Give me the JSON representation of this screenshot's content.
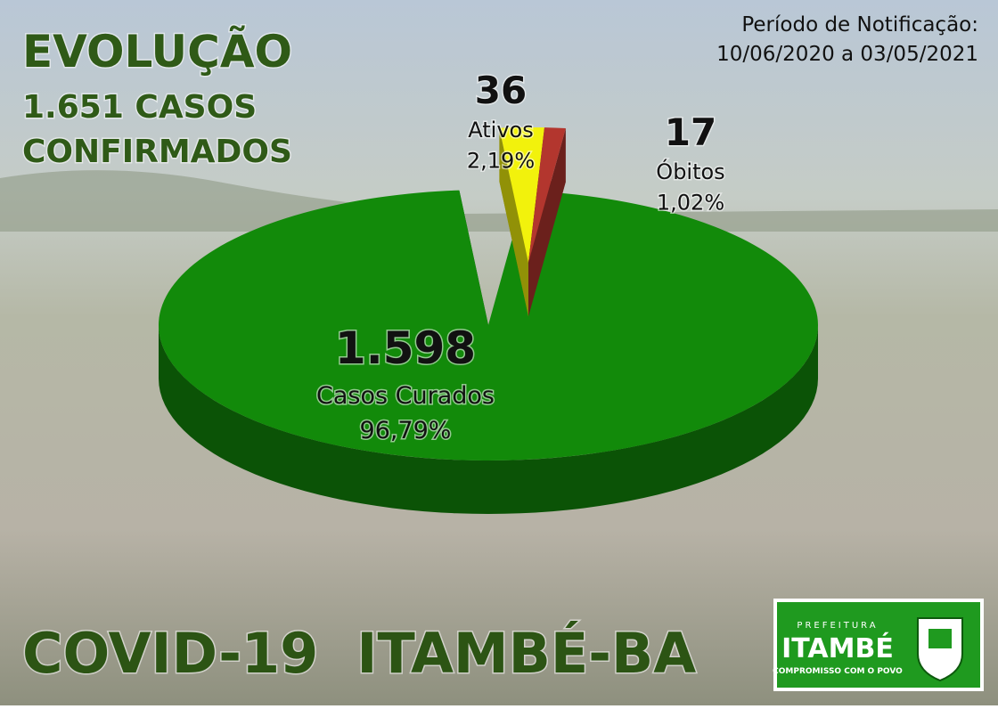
{
  "chart_data": {
    "type": "pie",
    "title": "EVOLUÇÃO",
    "subtitle": [
      "1.651 CASOS",
      "CONFIRMADOS"
    ],
    "period_label": "Período de Notificação:",
    "period": "10/06/2020 a 03/05/2021",
    "footer": "COVID-19  ITAMBÉ-BA",
    "categories": [
      "Casos Curados",
      "Ativos",
      "Óbitos"
    ],
    "values": [
      1598,
      36,
      17
    ],
    "value_labels": [
      "1.598",
      "36",
      "17"
    ],
    "percent_labels": [
      "96,79%",
      "2,19%",
      "1,02%"
    ],
    "colors": [
      "#128a0a",
      "#f2f20c",
      "#b3362e"
    ],
    "exploded": [
      false,
      true,
      true
    ]
  },
  "logo": {
    "top": "PREFEITURA",
    "name": "ITAMBÉ",
    "motto": "COMPROMISSO COM O POVO"
  }
}
